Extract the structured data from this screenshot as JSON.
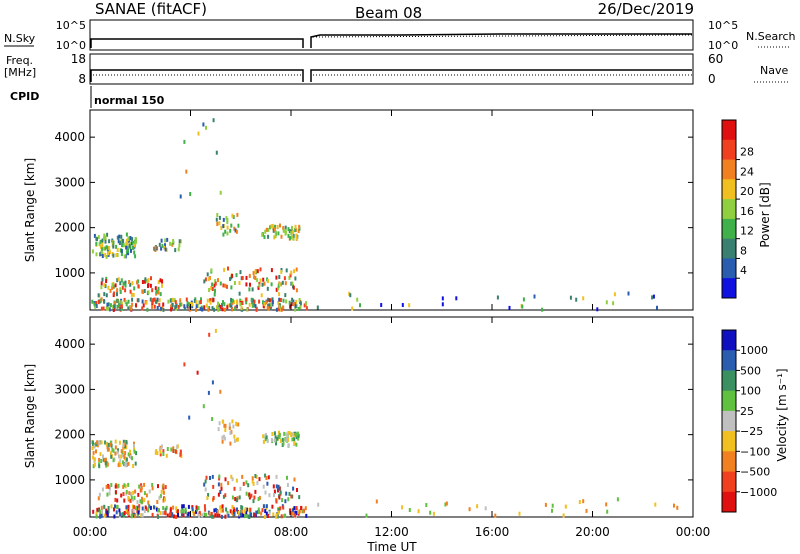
{
  "header": {
    "station": "SANAE (fitACF)",
    "beam": "Beam 08",
    "date": "26/Dec/2019"
  },
  "top_panels": {
    "nsky_label": "N.Sky",
    "nsearch_label": "N.Search",
    "noise_ticks_left": [
      "10^5",
      "10^0"
    ],
    "noise_ticks_right": [
      "10^5",
      "10^0"
    ],
    "freq_label": "Freq.",
    "freq_unit": "[MHz]",
    "freq_ticks": [
      "18",
      "8"
    ],
    "nave_label": "Nave",
    "nave_ticks": [
      "60",
      "0"
    ],
    "cpid_label": "CPID",
    "cpid_value": "normal 150"
  },
  "colors": {
    "power": [
      "#1010e0",
      "#2a5cb0",
      "#3a8070",
      "#40b04a",
      "#90d040",
      "#f0c020",
      "#f08020",
      "#f04020",
      "#e01010"
    ],
    "velocity": [
      "#1010c0",
      "#2a5cb0",
      "#3a9060",
      "#60c040",
      "#c0c0c0",
      "#f0c020",
      "#f08020",
      "#f04020",
      "#e01010"
    ]
  },
  "chart_data": [
    {
      "type": "heatmap",
      "name": "power",
      "ylabel": "Slant Range [km]",
      "yticks": [
        1000,
        2000,
        3000,
        4000
      ],
      "ylim": [
        180,
        4600
      ],
      "xlim_hours": [
        0,
        24
      ],
      "colorbar_label": "Power [dB]",
      "colorbar_ticks": [
        "4",
        "8",
        "12",
        "16",
        "20",
        "24",
        "28"
      ],
      "clusters": [
        {
          "t0": 0.0,
          "t1": 1.8,
          "r0": 1350,
          "r1": 1850,
          "n": 110,
          "range": [
            1,
            5
          ]
        },
        {
          "t0": 2.5,
          "t1": 3.6,
          "r0": 1500,
          "r1": 1750,
          "n": 25,
          "range": [
            1,
            6
          ]
        },
        {
          "t0": 5.0,
          "t1": 5.9,
          "r0": 1800,
          "r1": 2300,
          "n": 25,
          "range": [
            1,
            6
          ]
        },
        {
          "t0": 6.8,
          "t1": 8.3,
          "r0": 1750,
          "r1": 2050,
          "n": 55,
          "range": [
            2,
            6
          ]
        },
        {
          "t0": 0.3,
          "t1": 3.0,
          "r0": 500,
          "r1": 900,
          "n": 70,
          "range": [
            2,
            8
          ]
        },
        {
          "t0": 4.5,
          "t1": 8.3,
          "r0": 500,
          "r1": 1100,
          "n": 90,
          "range": [
            2,
            8
          ]
        },
        {
          "t0": 0.0,
          "t1": 8.6,
          "r0": 180,
          "r1": 420,
          "n": 260,
          "range": [
            1,
            8
          ]
        },
        {
          "t0": 3.5,
          "t1": 5.2,
          "r0": 2300,
          "r1": 4400,
          "n": 10,
          "range": [
            1,
            6
          ]
        },
        {
          "t0": 9.0,
          "t1": 24.0,
          "r0": 180,
          "r1": 600,
          "n": 30,
          "range": [
            0,
            5
          ]
        }
      ]
    },
    {
      "type": "heatmap",
      "name": "velocity",
      "ylabel": "Slant Range [km]",
      "yticks": [
        1000,
        2000,
        3000,
        4000
      ],
      "ylim": [
        180,
        4600
      ],
      "xlim_hours": [
        0,
        24
      ],
      "xticks": [
        "00:00",
        "04:00",
        "08:00",
        "12:00",
        "16:00",
        "20:00",
        "00:00"
      ],
      "xlabel": "Time UT",
      "colorbar_label": "Velocity [m s⁻¹]",
      "colorbar_ticks": [
        "1000",
        "500",
        "100",
        "25",
        "−25",
        "−100",
        "−500",
        "−1000"
      ],
      "clusters": [
        {
          "t0": 0.0,
          "t1": 1.8,
          "r0": 1300,
          "r1": 1850,
          "n": 110,
          "range": [
            2,
            6
          ]
        },
        {
          "t0": 2.5,
          "t1": 3.6,
          "r0": 1500,
          "r1": 1750,
          "n": 25,
          "range": [
            3,
            7
          ]
        },
        {
          "t0": 5.0,
          "t1": 5.9,
          "r0": 1800,
          "r1": 2300,
          "n": 25,
          "range": [
            4,
            6
          ]
        },
        {
          "t0": 6.8,
          "t1": 8.3,
          "r0": 1750,
          "r1": 2050,
          "n": 55,
          "range": [
            2,
            5
          ]
        },
        {
          "t0": 0.3,
          "t1": 3.0,
          "r0": 500,
          "r1": 900,
          "n": 70,
          "range": [
            3,
            8
          ]
        },
        {
          "t0": 4.5,
          "t1": 8.3,
          "r0": 500,
          "r1": 1100,
          "n": 90,
          "range": [
            1,
            8
          ]
        },
        {
          "t0": 0.0,
          "t1": 8.6,
          "r0": 180,
          "r1": 420,
          "n": 260,
          "range": [
            0,
            8
          ]
        },
        {
          "t0": 3.5,
          "t1": 5.2,
          "r0": 2300,
          "r1": 4400,
          "n": 10,
          "range": [
            0,
            8
          ]
        },
        {
          "t0": 9.0,
          "t1": 24.0,
          "r0": 180,
          "r1": 600,
          "n": 30,
          "range": [
            3,
            6
          ]
        }
      ]
    }
  ]
}
